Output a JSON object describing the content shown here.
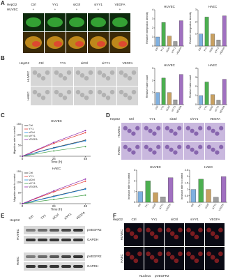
{
  "panels": {
    "A": {
      "label": "A",
      "rows": [
        "HepG2",
        "HUVEC"
      ],
      "columns": [
        "Ctrl",
        "YY1",
        "siCtrl",
        "siYY1",
        "VEGFA"
      ],
      "signs": [
        "+",
        "+",
        "+",
        "+",
        "+"
      ]
    },
    "B": {
      "label": "B",
      "cell": "HepG2",
      "columns": [
        "Ctrl",
        "YY1",
        "siCtrl",
        "siYY1",
        "VEGFA"
      ],
      "rows": [
        "HUVEC",
        "HAEC"
      ]
    },
    "C": {
      "label": "C"
    },
    "D": {
      "label": "D",
      "cell": "HepG2",
      "columns": [
        "Ctrl",
        "YY1",
        "siCtrl",
        "siYY1",
        "VEGFA"
      ],
      "rows": [
        "HUVEC",
        "HAEC"
      ]
    },
    "E": {
      "label": "E",
      "cell": "HepG2",
      "columns": [
        "Ctrl",
        "YY1",
        "siCtrl",
        "siYY1",
        "VEGFA"
      ],
      "groups": [
        {
          "name": "HUVEC",
          "bands": [
            "pVEGFR2",
            "GAPDH"
          ]
        },
        {
          "name": "HAEC",
          "bands": [
            "pVEGFR2",
            "GAPDH"
          ]
        }
      ]
    },
    "F": {
      "label": "F",
      "cell": "HepG2",
      "columns": [
        "Ctrl",
        "YY1",
        "siCtrl",
        "siYY1",
        "VEGFA"
      ],
      "rows": [
        "HUVEC",
        "HAEC"
      ],
      "legend": [
        "Nucleus",
        "pVEGFR2"
      ]
    }
  },
  "chart_data": [
    {
      "type": "bar",
      "title": "HUVEC",
      "ylabel": "Relative integration density",
      "categories": [
        "Ctrl",
        "YY1",
        "siCtrl",
        "siYY1",
        "VEGFA"
      ],
      "values": [
        1,
        2.6,
        1.1,
        0.5,
        2.8
      ],
      "colors": [
        "#7fb0e0",
        "#4caf50",
        "#c8a060",
        "#9e9e9e",
        "#a070c0"
      ],
      "ylim": [
        0,
        4
      ],
      "yticks": [
        0,
        1,
        2,
        3,
        4
      ]
    },
    {
      "type": "bar",
      "title": "HAEC",
      "ylabel": "Relative integration density",
      "categories": [
        "Ctrl",
        "YY1",
        "siCtrl",
        "siYY1",
        "VEGFA"
      ],
      "values": [
        1,
        2.4,
        1,
        0.5,
        2.5
      ],
      "colors": [
        "#7fb0e0",
        "#4caf50",
        "#c8a060",
        "#9e9e9e",
        "#a070c0"
      ],
      "ylim": [
        0,
        3
      ],
      "yticks": [
        0,
        1,
        2,
        3
      ]
    },
    {
      "type": "bar",
      "title": "HUVEC",
      "ylabel": "Relative tube count",
      "categories": [
        "Ctrl",
        "YY1",
        "siCtrl",
        "siYY1",
        "VEGFA"
      ],
      "values": [
        1,
        2.2,
        1,
        0.4,
        2.5
      ],
      "colors": [
        "#7fb0e0",
        "#4caf50",
        "#c8a060",
        "#9e9e9e",
        "#a070c0"
      ],
      "ylim": [
        0,
        3
      ],
      "yticks": [
        0,
        1,
        2,
        3
      ]
    },
    {
      "type": "bar",
      "title": "HAEC",
      "ylabel": "Relative tube count",
      "categories": [
        "Ctrl",
        "YY1",
        "siCtrl",
        "siYY1",
        "VEGFA"
      ],
      "values": [
        1,
        2.5,
        1.1,
        0.5,
        2.8
      ],
      "colors": [
        "#7fb0e0",
        "#4caf50",
        "#c8a060",
        "#9e9e9e",
        "#a070c0"
      ],
      "ylim": [
        0,
        4
      ],
      "yticks": [
        0,
        1,
        2,
        3,
        4
      ]
    },
    {
      "type": "line",
      "title": "HUVEC",
      "ylabel": "Migration rate to control",
      "xlabel": "Time (h)",
      "x": [
        0,
        24,
        48
      ],
      "xlim": [
        0,
        52
      ],
      "xticks": [
        0,
        24,
        48
      ],
      "ylim": [
        0,
        150
      ],
      "yticks": [
        0,
        50,
        100,
        150
      ],
      "series": [
        {
          "name": "Ctrl",
          "color": "#333333",
          "values": [
            0,
            40,
            75
          ]
        },
        {
          "name": "YY1",
          "color": "#e53935",
          "values": [
            0,
            60,
            110
          ]
        },
        {
          "name": "siCtrl",
          "color": "#1e88e5",
          "values": [
            0,
            38,
            72
          ]
        },
        {
          "name": "siYY1",
          "color": "#43a047",
          "values": [
            0,
            25,
            45
          ]
        },
        {
          "name": "VEGFA",
          "color": "#8e24aa",
          "values": [
            0,
            65,
            120
          ]
        }
      ]
    },
    {
      "type": "line",
      "title": "HAEC",
      "ylabel": "Migration rate to control",
      "xlabel": "Time (h)",
      "x": [
        0,
        24,
        48
      ],
      "xlim": [
        0,
        52
      ],
      "xticks": [
        0,
        24,
        48
      ],
      "ylim": [
        0,
        150
      ],
      "yticks": [
        0,
        50,
        100,
        150
      ],
      "series": [
        {
          "name": "Ctrl",
          "color": "#333333",
          "values": [
            0,
            35,
            70
          ]
        },
        {
          "name": "YY1",
          "color": "#e53935",
          "values": [
            0,
            55,
            105
          ]
        },
        {
          "name": "siCtrl",
          "color": "#1e88e5",
          "values": [
            0,
            33,
            68
          ]
        },
        {
          "name": "siYY1",
          "color": "#43a047",
          "values": [
            0,
            20,
            40
          ]
        },
        {
          "name": "VEGFA",
          "color": "#8e24aa",
          "values": [
            0,
            60,
            115
          ]
        }
      ]
    },
    {
      "type": "bar",
      "title": "HUVEC",
      "ylabel": "Invasion rate to control",
      "categories": [
        "Ctrl",
        "YY1",
        "siCtrl",
        "siYY1",
        "VEGFA"
      ],
      "values": [
        1,
        2,
        0.9,
        0.5,
        2.3
      ],
      "colors": [
        "#7fb0e0",
        "#4caf50",
        "#c8a060",
        "#9e9e9e",
        "#a070c0"
      ],
      "ylim": [
        0,
        3
      ],
      "yticks": [
        0,
        1,
        2,
        3
      ]
    },
    {
      "type": "bar",
      "title": "HAEC",
      "ylabel": "Invasion rate to control",
      "categories": [
        "Ctrl",
        "YY1",
        "siCtrl",
        "siYY1",
        "VEGFA"
      ],
      "values": [
        1,
        1.8,
        1,
        0.4,
        2
      ],
      "colors": [
        "#7fb0e0",
        "#4caf50",
        "#c8a060",
        "#9e9e9e",
        "#a070c0"
      ],
      "ylim": [
        0,
        2.5
      ],
      "yticks": [
        0,
        0.5,
        1,
        1.5,
        2,
        2.5
      ]
    }
  ]
}
